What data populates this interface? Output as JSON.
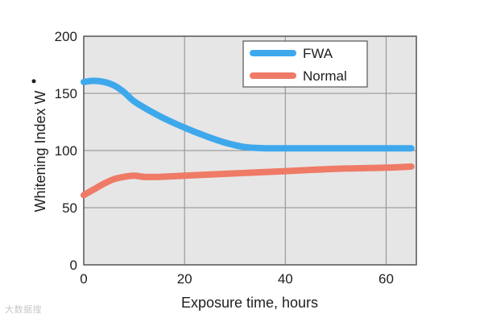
{
  "chart_data": {
    "type": "line",
    "xlabel": "Exposure time, hours",
    "ylabel": "Whitening Index W",
    "ylabel_superscript": "•",
    "xlim": [
      0,
      66
    ],
    "ylim": [
      0,
      200
    ],
    "xticks": [
      0,
      20,
      40,
      60
    ],
    "yticks": [
      0,
      50,
      100,
      150,
      200
    ],
    "grid": true,
    "legend_position": "top-right",
    "background": "#e6e6e6",
    "series": [
      {
        "name": "FWA",
        "color": "#3ea8ec",
        "x": [
          0,
          2,
          4,
          6,
          8,
          10,
          13,
          16,
          20,
          24,
          28,
          32,
          36,
          38,
          40,
          45,
          50,
          55,
          60,
          65
        ],
        "y": [
          160,
          161,
          160,
          157,
          151,
          143,
          135,
          128,
          120,
          113,
          107,
          103,
          102,
          102,
          102,
          102,
          102,
          102,
          102,
          102
        ]
      },
      {
        "name": "Normal",
        "color": "#ef7a66",
        "x": [
          0,
          2,
          4,
          6,
          8,
          10,
          12,
          15,
          20,
          30,
          40,
          50,
          60,
          65
        ],
        "y": [
          61,
          66,
          71,
          75,
          77,
          78,
          77,
          77,
          78,
          80,
          82,
          84,
          85,
          86
        ]
      }
    ]
  },
  "watermark_text": "大数据搜"
}
